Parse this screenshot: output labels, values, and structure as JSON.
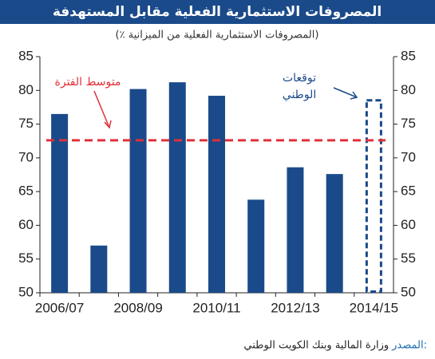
{
  "chart_data": {
    "type": "bar",
    "title": "المصروفات الاستثمارية الفعلية مقابل المستهدفة",
    "subtitle": "(٪ المصروفات الاستثمارية الفعلية من الميزانية)",
    "categories": [
      "2006/07",
      null,
      "2008/09",
      null,
      "2010/11",
      null,
      "2012/13",
      null,
      "2014/15"
    ],
    "values": [
      76.5,
      57,
      80.2,
      81.2,
      79.2,
      63.8,
      68.6,
      67.6,
      78.7
    ],
    "bar_styles": [
      "solid",
      "solid",
      "solid",
      "solid",
      "solid",
      "solid",
      "solid",
      "solid",
      "dashed"
    ],
    "color": "#1a4a8a",
    "average_line": {
      "value": 72.6,
      "label": "متوسط الفترة",
      "color": "#e0303a"
    },
    "forecast_annotation": [
      "توقعات",
      "الوطني"
    ],
    "ylim": [
      50,
      85
    ],
    "yticks": [
      50,
      55,
      60,
      65,
      70,
      75,
      80,
      85
    ],
    "y2lim": [
      50,
      85
    ],
    "y2ticks": [
      50,
      55,
      60,
      65,
      70,
      75,
      80,
      85
    ],
    "source_label": "المصدر:",
    "source": "وزارة المالية وبنك الكويت الوطني"
  }
}
